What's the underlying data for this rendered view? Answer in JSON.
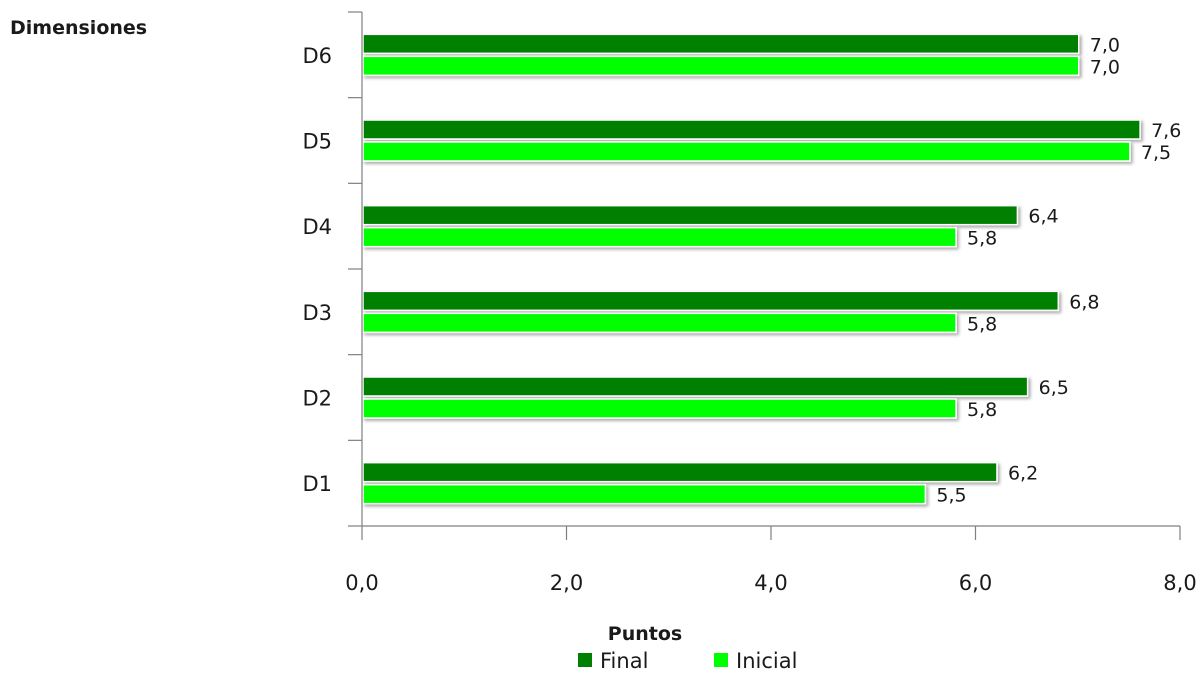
{
  "chart_data": {
    "type": "bar",
    "orientation": "horizontal",
    "ylabel": "Dimensiones",
    "xlabel": "Puntos",
    "categories": [
      "D6",
      "D5",
      "D4",
      "D3",
      "D2",
      "D1"
    ],
    "series": [
      {
        "name": "Final",
        "color": "#008000",
        "values": [
          7.0,
          7.6,
          6.4,
          6.8,
          6.5,
          6.2
        ],
        "labels": [
          "7,0",
          "7,6",
          "6,4",
          "6,8",
          "6,5",
          "6,2"
        ]
      },
      {
        "name": "Inicial",
        "color": "#00ff00",
        "values": [
          7.0,
          7.5,
          5.8,
          5.8,
          5.8,
          5.5
        ],
        "labels": [
          "7,0",
          "7,5",
          "5,8",
          "5,8",
          "5,8",
          "5,5"
        ]
      }
    ],
    "xlim": [
      0,
      8
    ],
    "xticks": [
      0,
      2,
      4,
      6,
      8
    ],
    "xtick_labels": [
      "0,0",
      "2,0",
      "4,0",
      "6,0",
      "8,0"
    ],
    "grid": false,
    "legend": "bottom"
  }
}
